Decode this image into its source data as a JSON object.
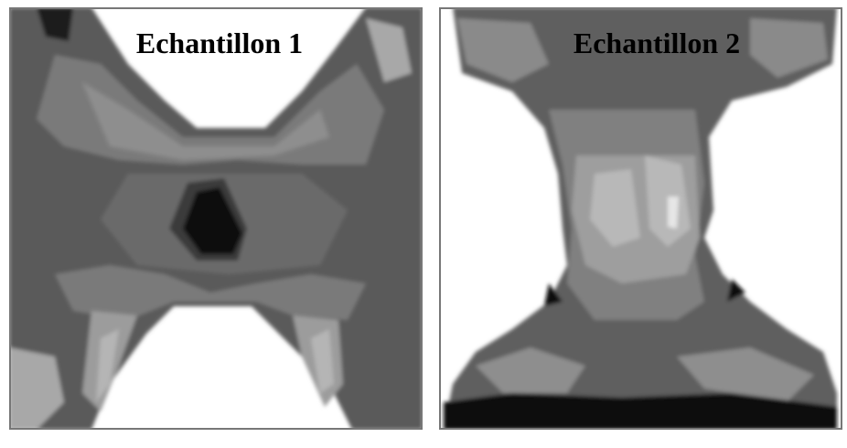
{
  "panels": [
    {
      "label": "Echantillon 1"
    },
    {
      "label": "Echantillon 2"
    }
  ]
}
